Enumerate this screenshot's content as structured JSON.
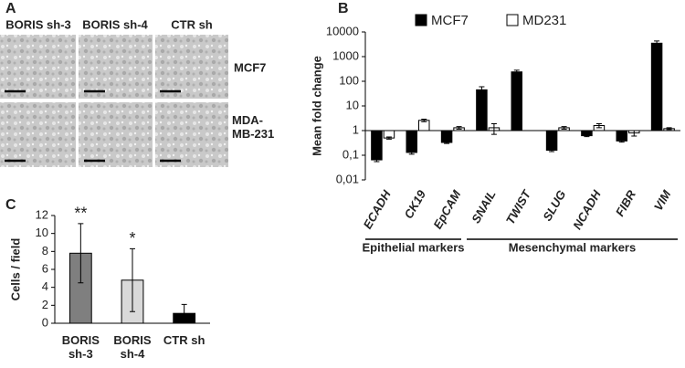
{
  "panel_labels": [
    "A",
    "B",
    "C"
  ],
  "images": {
    "columns": [
      "BORIS sh-3",
      "BORIS sh-4",
      "CTR sh"
    ],
    "rows": [
      "MCF7",
      "MDA-MB-231"
    ]
  },
  "chart_data": [
    {
      "type": "bar",
      "y_label": "Mean fold change",
      "log_scale": true,
      "categories": [
        "ECADH",
        "CK19",
        "EpCAM",
        "SNAIL",
        "TWIST",
        "SLUG",
        "NCADH",
        "FIBR",
        "VIM"
      ],
      "series": [
        {
          "name": "MCF7",
          "color": "#000000",
          "values": [
            0.065,
            0.13,
            0.33,
            45,
            240,
            0.16,
            0.62,
            0.38,
            3500
          ],
          "errors": [
            0.01,
            0.02,
            0.03,
            15,
            40,
            0.02,
            0.05,
            0.04,
            800
          ]
        },
        {
          "name": "MD231",
          "color": "#ffffff",
          "values": [
            0.5,
            2.6,
            1.3,
            1.3,
            null,
            1.3,
            1.6,
            0.8,
            1.2
          ],
          "errors": [
            0.05,
            0.3,
            0.15,
            0.6,
            null,
            0.15,
            0.3,
            0.2,
            0.1
          ]
        }
      ],
      "ylim": [
        0.01,
        10000
      ],
      "yticks": [
        {
          "value": 0.01,
          "label": "0,01"
        },
        {
          "value": 0.1,
          "label": "0,1"
        },
        1,
        10,
        100,
        1000,
        10000
      ],
      "group_labels": [
        "Epithelial markers",
        "Mesenchymal markers"
      ]
    },
    {
      "type": "bar",
      "y_label": "Cells / field",
      "categories": [
        "BORIS sh-3",
        "BORIS sh-4",
        "CTR sh"
      ],
      "values": [
        7.8,
        4.8,
        1.1
      ],
      "errors": [
        3.3,
        3.5,
        1.0
      ],
      "colors": [
        "#7f7f7f",
        "#d9d9d9",
        "#000000"
      ],
      "annotations": [
        "**",
        "*"
      ],
      "ylim": [
        0,
        12
      ],
      "yticks": [
        0,
        2,
        4,
        6,
        8,
        10,
        12
      ]
    }
  ]
}
